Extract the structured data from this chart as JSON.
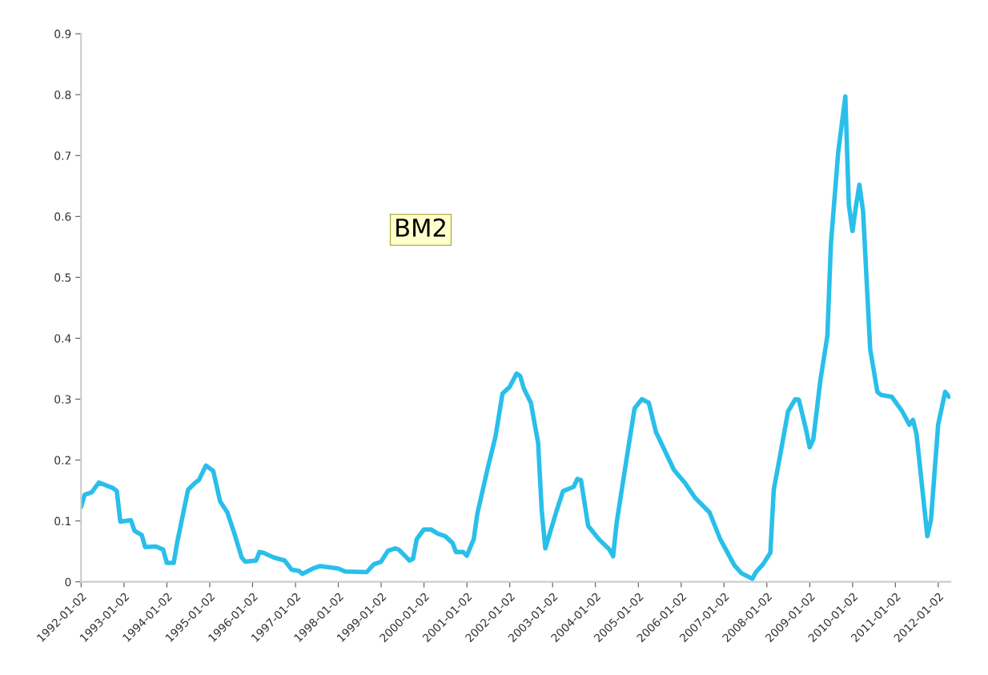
{
  "chart_data": {
    "type": "line",
    "annotations": [
      "BM2"
    ],
    "x": [
      "1992-01",
      "1992-02",
      "1992-04",
      "1992-06",
      "1992-10",
      "1992-11",
      "1992-12",
      "1993-03",
      "1993-04",
      "1993-06",
      "1993-07",
      "1993-10",
      "1993-12",
      "1994-01",
      "1994-03",
      "1994-04",
      "1994-06",
      "1994-07",
      "1994-09",
      "1994-10",
      "1994-12",
      "1995-02",
      "1995-04",
      "1995-06",
      "1995-08",
      "1995-10",
      "1995-11",
      "1996-02",
      "1996-03",
      "1996-04",
      "1996-07",
      "1996-10",
      "1996-12",
      "1997-02",
      "1997-03",
      "1997-06",
      "1997-08",
      "1998-01",
      "1998-03",
      "1998-09",
      "1998-11",
      "1999-01",
      "1999-03",
      "1999-05",
      "1999-06",
      "1999-09",
      "1999-10",
      "1999-11",
      "2000-01",
      "2000-03",
      "2000-05",
      "2000-07",
      "2000-09",
      "2000-10",
      "2000-12",
      "2001-01",
      "2001-03",
      "2001-04",
      "2001-07",
      "2001-09",
      "2001-11",
      "2002-01",
      "2002-03",
      "2002-04",
      "2002-05",
      "2002-07",
      "2002-09",
      "2002-10",
      "2002-11",
      "2003-02",
      "2003-04",
      "2003-07",
      "2003-08",
      "2003-09",
      "2003-11",
      "2004-02",
      "2004-05",
      "2004-06",
      "2004-07",
      "2004-10",
      "2004-12",
      "2005-02",
      "2005-04",
      "2005-06",
      "2005-11",
      "2006-02",
      "2006-05",
      "2006-09",
      "2006-12",
      "2007-04",
      "2007-06",
      "2007-09",
      "2007-10",
      "2007-12",
      "2008-02",
      "2008-03",
      "2008-05",
      "2008-07",
      "2008-09",
      "2008-10",
      "2008-12",
      "2009-01",
      "2009-02",
      "2009-04",
      "2009-06",
      "2009-07",
      "2009-09",
      "2009-11",
      "2009-12",
      "2010-01",
      "2010-02",
      "2010-03",
      "2010-04",
      "2010-06",
      "2010-08",
      "2010-09",
      "2010-12",
      "2011-03",
      "2011-05",
      "2011-06",
      "2011-07",
      "2011-10",
      "2011-11",
      "2012-01",
      "2012-03",
      "2012-04"
    ],
    "series": [
      {
        "color": "#29bfea",
        "values": [
          0.123,
          0.143,
          0.147,
          0.163,
          0.154,
          0.149,
          0.099,
          0.101,
          0.084,
          0.077,
          0.057,
          0.058,
          0.053,
          0.031,
          0.031,
          0.066,
          0.123,
          0.151,
          0.163,
          0.167,
          0.191,
          0.182,
          0.132,
          0.114,
          0.079,
          0.04,
          0.033,
          0.035,
          0.049,
          0.048,
          0.04,
          0.035,
          0.02,
          0.018,
          0.013,
          0.022,
          0.026,
          0.022,
          0.017,
          0.016,
          0.029,
          0.033,
          0.051,
          0.055,
          0.053,
          0.035,
          0.038,
          0.07,
          0.086,
          0.086,
          0.079,
          0.075,
          0.064,
          0.049,
          0.049,
          0.043,
          0.07,
          0.112,
          0.189,
          0.237,
          0.309,
          0.32,
          0.342,
          0.338,
          0.318,
          0.294,
          0.228,
          0.119,
          0.055,
          0.114,
          0.149,
          0.156,
          0.169,
          0.167,
          0.092,
          0.07,
          0.053,
          0.042,
          0.097,
          0.211,
          0.285,
          0.3,
          0.294,
          0.246,
          0.184,
          0.163,
          0.138,
          0.114,
          0.07,
          0.027,
          0.014,
          0.005,
          0.016,
          0.029,
          0.048,
          0.151,
          0.215,
          0.28,
          0.3,
          0.299,
          0.25,
          0.221,
          0.234,
          0.329,
          0.404,
          0.555,
          0.705,
          0.797,
          0.619,
          0.576,
          0.619,
          0.652,
          0.609,
          0.382,
          0.312,
          0.307,
          0.304,
          0.28,
          0.258,
          0.266,
          0.242,
          0.075,
          0.102,
          0.258,
          0.312,
          0.304
        ]
      }
    ],
    "xlim": [
      "1992-01-01",
      "2012-04-15"
    ],
    "xticks": [
      "1992-01-02",
      "1993-01-02",
      "1994-01-02",
      "1995-01-02",
      "1996-01-02",
      "1997-01-02",
      "1998-01-02",
      "1999-01-02",
      "2000-01-02",
      "2001-01-02",
      "2002-01-02",
      "2003-01-02",
      "2004-01-02",
      "2005-01-02",
      "2006-01-02",
      "2007-01-02",
      "2008-01-02",
      "2009-01-02",
      "2010-01-02",
      "2011-01-02",
      "2012-01-02"
    ],
    "ylim": [
      0,
      0.9
    ],
    "yticks": [
      0,
      0.1,
      0.2,
      0.3,
      0.4,
      0.5,
      0.6,
      0.7,
      0.8,
      0.9
    ],
    "grid": false,
    "marker": "none",
    "line_style": "solid"
  }
}
